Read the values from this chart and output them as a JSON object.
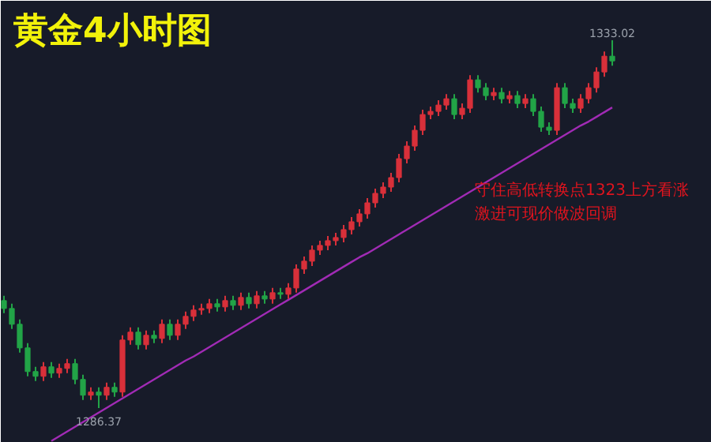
{
  "chart_data": {
    "type": "candlestick",
    "title": "黄金4小时图",
    "categories": [
      null,
      null,
      null,
      null,
      null,
      null,
      null,
      null,
      null,
      null,
      null,
      null,
      null,
      null,
      null,
      null,
      null,
      null,
      null,
      null,
      null,
      null,
      null,
      null,
      null,
      null,
      null,
      null,
      null,
      null,
      null,
      null,
      null,
      null,
      null,
      null,
      null,
      null,
      null,
      null,
      null,
      null,
      null,
      null,
      null,
      null,
      null,
      null,
      null,
      null,
      null,
      null,
      null,
      null,
      null,
      null,
      null,
      null,
      null,
      null,
      null,
      null,
      null,
      null,
      null,
      null,
      null,
      null,
      null,
      null,
      null,
      null,
      null,
      null,
      null,
      null,
      null,
      null
    ],
    "ohlc": [
      [
        1300.0,
        1300.6,
        1298.4,
        1299.0
      ],
      [
        1299.0,
        1299.6,
        1296.4,
        1297.0
      ],
      [
        1297.0,
        1297.6,
        1293.4,
        1294.0
      ],
      [
        1294.0,
        1294.6,
        1290.4,
        1291.0
      ],
      [
        1291.0,
        1291.6,
        1289.8,
        1290.4
      ],
      [
        1290.4,
        1292.2,
        1289.8,
        1291.6
      ],
      [
        1291.6,
        1292.2,
        1290.2,
        1290.8
      ],
      [
        1290.8,
        1292.0,
        1290.2,
        1291.4
      ],
      [
        1291.4,
        1292.6,
        1290.8,
        1292.0
      ],
      [
        1292.0,
        1292.6,
        1289.4,
        1290.0
      ],
      [
        1290.0,
        1290.6,
        1287.4,
        1288.0
      ],
      [
        1288.0,
        1289.0,
        1287.4,
        1288.4
      ],
      [
        1288.4,
        1289.0,
        1286.37,
        1288.0
      ],
      [
        1288.0,
        1289.6,
        1287.4,
        1289.0
      ],
      [
        1289.0,
        1289.6,
        1287.8,
        1288.4
      ],
      [
        1288.4,
        1295.6,
        1287.8,
        1295.0
      ],
      [
        1295.0,
        1296.6,
        1294.4,
        1296.0
      ],
      [
        1296.0,
        1296.6,
        1293.8,
        1294.4
      ],
      [
        1294.4,
        1296.2,
        1293.8,
        1295.6
      ],
      [
        1295.6,
        1296.2,
        1294.6,
        1295.2
      ],
      [
        1295.2,
        1297.6,
        1294.6,
        1297.0
      ],
      [
        1297.0,
        1297.6,
        1295.0,
        1295.6
      ],
      [
        1295.6,
        1297.6,
        1295.0,
        1297.0
      ],
      [
        1297.0,
        1298.6,
        1296.4,
        1298.0
      ],
      [
        1298.0,
        1299.4,
        1297.4,
        1298.8
      ],
      [
        1298.8,
        1299.6,
        1298.2,
        1299.0
      ],
      [
        1299.0,
        1300.2,
        1298.4,
        1299.6
      ],
      [
        1299.6,
        1300.2,
        1298.6,
        1299.2
      ],
      [
        1299.2,
        1300.6,
        1298.6,
        1300.0
      ],
      [
        1300.0,
        1300.6,
        1298.8,
        1299.4
      ],
      [
        1299.4,
        1301.0,
        1298.8,
        1300.4
      ],
      [
        1300.4,
        1301.0,
        1299.0,
        1299.6
      ],
      [
        1299.6,
        1301.2,
        1299.0,
        1300.6
      ],
      [
        1300.6,
        1301.2,
        1299.6,
        1300.2
      ],
      [
        1300.2,
        1301.6,
        1299.6,
        1301.0
      ],
      [
        1301.0,
        1301.6,
        1300.2,
        1300.8
      ],
      [
        1300.8,
        1302.2,
        1300.2,
        1301.6
      ],
      [
        1301.6,
        1304.6,
        1301.0,
        1304.0
      ],
      [
        1304.0,
        1305.6,
        1303.4,
        1305.0
      ],
      [
        1305.0,
        1307.0,
        1304.4,
        1306.4
      ],
      [
        1306.4,
        1307.6,
        1305.8,
        1307.0
      ],
      [
        1307.0,
        1308.2,
        1306.4,
        1307.6
      ],
      [
        1307.6,
        1308.6,
        1307.0,
        1308.0
      ],
      [
        1308.0,
        1309.6,
        1307.4,
        1309.0
      ],
      [
        1309.0,
        1310.6,
        1308.4,
        1310.0
      ],
      [
        1310.0,
        1311.6,
        1309.4,
        1311.0
      ],
      [
        1311.0,
        1313.0,
        1310.4,
        1312.4
      ],
      [
        1312.4,
        1314.2,
        1311.8,
        1313.6
      ],
      [
        1313.6,
        1315.0,
        1313.0,
        1314.4
      ],
      [
        1314.4,
        1316.2,
        1313.8,
        1315.6
      ],
      [
        1315.6,
        1318.6,
        1315.0,
        1318.0
      ],
      [
        1318.0,
        1320.2,
        1317.4,
        1319.6
      ],
      [
        1319.6,
        1322.2,
        1319.0,
        1321.6
      ],
      [
        1321.6,
        1324.2,
        1321.0,
        1323.6
      ],
      [
        1323.6,
        1324.6,
        1323.0,
        1324.0
      ],
      [
        1324.0,
        1325.4,
        1323.4,
        1324.8
      ],
      [
        1324.8,
        1326.2,
        1324.2,
        1325.6
      ],
      [
        1325.6,
        1326.2,
        1323.0,
        1323.6
      ],
      [
        1323.6,
        1325.0,
        1323.0,
        1324.4
      ],
      [
        1324.4,
        1328.6,
        1323.8,
        1328.0
      ],
      [
        1328.0,
        1328.6,
        1326.4,
        1327.0
      ],
      [
        1327.0,
        1327.6,
        1325.4,
        1326.0
      ],
      [
        1326.0,
        1327.0,
        1325.4,
        1326.4
      ],
      [
        1326.4,
        1327.0,
        1325.0,
        1325.6
      ],
      [
        1325.6,
        1326.6,
        1325.0,
        1326.0
      ],
      [
        1326.0,
        1326.6,
        1324.4,
        1325.0
      ],
      [
        1325.0,
        1326.2,
        1324.4,
        1325.6
      ],
      [
        1325.6,
        1326.2,
        1323.4,
        1324.0
      ],
      [
        1324.0,
        1324.6,
        1321.4,
        1322.0
      ],
      [
        1322.0,
        1322.6,
        1321.0,
        1321.6
      ],
      [
        1321.6,
        1327.6,
        1321.0,
        1327.0
      ],
      [
        1327.0,
        1327.6,
        1324.4,
        1325.0
      ],
      [
        1325.0,
        1325.6,
        1323.8,
        1324.4
      ],
      [
        1324.4,
        1326.2,
        1323.8,
        1325.6
      ],
      [
        1325.6,
        1327.6,
        1325.0,
        1327.0
      ],
      [
        1327.0,
        1329.6,
        1326.4,
        1329.0
      ],
      [
        1329.0,
        1331.6,
        1328.4,
        1331.0
      ],
      [
        1331.0,
        1333.02,
        1329.8,
        1330.4
      ]
    ],
    "colors": [
      "#22a447",
      "#22a447",
      "#22a447",
      "#22a447",
      "#22a447",
      "#d8303a",
      "#22a447",
      "#d8303a",
      "#d8303a",
      "#22a447",
      "#22a447",
      "#d8303a",
      "#22a447",
      "#d8303a",
      "#22a447",
      "#d8303a",
      "#d8303a",
      "#22a447",
      "#d8303a",
      "#22a447",
      "#d8303a",
      "#22a447",
      "#d8303a",
      "#d8303a",
      "#d8303a",
      "#d8303a",
      "#d8303a",
      "#22a447",
      "#d8303a",
      "#22a447",
      "#d8303a",
      "#22a447",
      "#d8303a",
      "#22a447",
      "#d8303a",
      "#22a447",
      "#d8303a",
      "#d8303a",
      "#d8303a",
      "#d8303a",
      "#d8303a",
      "#d8303a",
      "#d8303a",
      "#d8303a",
      "#d8303a",
      "#d8303a",
      "#d8303a",
      "#d8303a",
      "#d8303a",
      "#d8303a",
      "#d8303a",
      "#d8303a",
      "#d8303a",
      "#d8303a",
      "#d8303a",
      "#d8303a",
      "#d8303a",
      "#22a447",
      "#d8303a",
      "#d8303a",
      "#22a447",
      "#22a447",
      "#d8303a",
      "#22a447",
      "#d8303a",
      "#22a447",
      "#d8303a",
      "#22a447",
      "#22a447",
      "#22a447",
      "#d8303a",
      "#22a447",
      "#22a447",
      "#d8303a",
      "#d8303a",
      "#d8303a",
      "#d8303a",
      "#22a447"
    ],
    "series": [
      {
        "type": "line",
        "values": [
          null,
          null,
          null,
          null,
          null,
          null,
          1282.2,
          1282.8,
          1283.4,
          1284.0,
          1284.6,
          1285.2,
          1285.8,
          1286.4,
          1287.0,
          1287.6,
          1288.2,
          1288.8,
          1289.4,
          1290.0,
          1290.6,
          1291.2,
          1291.8,
          1292.4,
          1292.9,
          1293.5,
          1294.1,
          1294.7,
          1295.3,
          1295.9,
          1296.5,
          1297.1,
          1297.7,
          1298.3,
          1298.9,
          1299.5,
          1300.1,
          1300.7,
          1301.3,
          1301.9,
          1302.5,
          1303.1,
          1303.7,
          1304.3,
          1304.9,
          1305.5,
          1306.0,
          1306.6,
          1307.2,
          1307.8,
          1308.4,
          1309.0,
          1309.6,
          1310.2,
          1310.8,
          1311.4,
          1312.0,
          1312.6,
          1313.2,
          1313.8,
          1314.4,
          1315.0,
          1315.6,
          1316.2,
          1316.8,
          1317.4,
          1318.0,
          1318.6,
          1319.2,
          1319.8,
          1320.4,
          1321.0,
          1321.6,
          1322.2,
          1322.7,
          1323.3,
          1323.9,
          1324.5
        ],
        "color": "#a12bb5"
      }
    ],
    "annotations": [
      {
        "text": "1333.02",
        "y": 1333.02
      },
      {
        "text": "1286.37",
        "y": 1286.37
      },
      "守住高低转换点1323上方看涨",
      "激进可现价做波回调"
    ],
    "tick_labels": false
  }
}
